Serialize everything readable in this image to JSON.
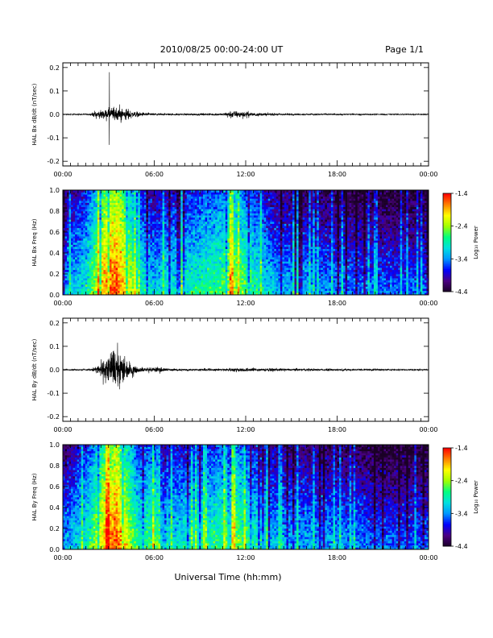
{
  "header": {
    "title": "2010/08/25  00:00-24:00 UT",
    "page": "Page 1/1"
  },
  "xlabel": "Universal Time (hh:mm)",
  "colors": {
    "colormap": [
      "#1a0026",
      "#4b0082",
      "#0000ff",
      "#0096ff",
      "#00e0e0",
      "#00ff80",
      "#a0ff00",
      "#ffff00",
      "#ff8000",
      "#ff0000"
    ],
    "trace": "#000000"
  },
  "chart_data": [
    {
      "type": "line",
      "ylabel": "HAL Bx dB/dt (nT/sec)",
      "x_range": [
        "00:00",
        "24:00"
      ],
      "ylim": [
        -0.22,
        0.22
      ],
      "yticks": [
        "-0.2",
        "-0.1",
        "0.0",
        "0.1",
        "0.2"
      ],
      "xticks": [
        "00:00",
        "06:00",
        "12:00",
        "18:00",
        "00:00"
      ],
      "activity_envelope": [
        {
          "hour": 0.0,
          "amp": 0.003
        },
        {
          "hour": 1.8,
          "amp": 0.004
        },
        {
          "hour": 2.0,
          "amp": 0.015
        },
        {
          "hour": 2.4,
          "amp": 0.02
        },
        {
          "hour": 3.0,
          "amp": 0.03
        },
        {
          "hour": 3.6,
          "amp": 0.045
        },
        {
          "hour": 4.0,
          "amp": 0.035
        },
        {
          "hour": 4.5,
          "amp": 0.02
        },
        {
          "hour": 5.0,
          "amp": 0.012
        },
        {
          "hour": 6.0,
          "amp": 0.006
        },
        {
          "hour": 8.0,
          "amp": 0.005
        },
        {
          "hour": 10.5,
          "amp": 0.006
        },
        {
          "hour": 11.0,
          "amp": 0.02
        },
        {
          "hour": 12.0,
          "amp": 0.015
        },
        {
          "hour": 13.0,
          "amp": 0.008
        },
        {
          "hour": 15.0,
          "amp": 0.005
        },
        {
          "hour": 18.0,
          "amp": 0.004
        },
        {
          "hour": 24.0,
          "amp": 0.003
        }
      ],
      "spike": {
        "hour": 3.05,
        "max": 0.18,
        "min": -0.13
      }
    },
    {
      "type": "heatmap",
      "ylabel": "HAL Bx Freq (Hz)",
      "ylim": [
        0.0,
        1.0
      ],
      "yticks": [
        "0.0",
        "0.2",
        "0.4",
        "0.6",
        "0.8",
        "1.0"
      ],
      "xticks": [
        "00:00",
        "06:00",
        "12:00",
        "18:00",
        "00:00"
      ],
      "colorbar_label": "Log₁₀ Power",
      "colorbar_ticks": [
        "-1.4",
        "-2.4",
        "-3.4",
        "-4.4"
      ],
      "crange": [
        -4.4,
        -1.4
      ],
      "bands": [
        {
          "hour": 0.0,
          "level": -3.7
        },
        {
          "hour": 1.5,
          "level": -3.3
        },
        {
          "hour": 2.0,
          "level": -2.9
        },
        {
          "hour": 2.8,
          "level": -2.1
        },
        {
          "hour": 3.5,
          "level": -1.9
        },
        {
          "hour": 4.2,
          "level": -2.4
        },
        {
          "hour": 5.0,
          "level": -3.2
        },
        {
          "hour": 6.0,
          "level": -3.5
        },
        {
          "hour": 8.0,
          "level": -3.3
        },
        {
          "hour": 10.5,
          "level": -3.0
        },
        {
          "hour": 11.0,
          "level": -2.6
        },
        {
          "hour": 12.0,
          "level": -3.0
        },
        {
          "hour": 14.0,
          "level": -3.6
        },
        {
          "hour": 18.0,
          "level": -3.8
        },
        {
          "hour": 21.0,
          "level": -3.9
        },
        {
          "hour": 24.0,
          "level": -3.9
        }
      ]
    },
    {
      "type": "line",
      "ylabel": "HAL By dB/dt (nT/sec)",
      "x_range": [
        "00:00",
        "24:00"
      ],
      "ylim": [
        -0.22,
        0.22
      ],
      "yticks": [
        "-0.2",
        "-0.1",
        "0.0",
        "0.1",
        "0.2"
      ],
      "xticks": [
        "00:00",
        "06:00",
        "12:00",
        "18:00",
        "00:00"
      ],
      "activity_envelope": [
        {
          "hour": 0.0,
          "amp": 0.003
        },
        {
          "hour": 1.8,
          "amp": 0.005
        },
        {
          "hour": 2.2,
          "amp": 0.02
        },
        {
          "hour": 2.8,
          "amp": 0.06
        },
        {
          "hour": 3.4,
          "amp": 0.13
        },
        {
          "hour": 3.8,
          "amp": 0.09
        },
        {
          "hour": 4.4,
          "amp": 0.04
        },
        {
          "hour": 5.0,
          "amp": 0.012
        },
        {
          "hour": 6.5,
          "amp": 0.015
        },
        {
          "hour": 7.0,
          "amp": 0.006
        },
        {
          "hour": 10.5,
          "amp": 0.007
        },
        {
          "hour": 11.5,
          "amp": 0.012
        },
        {
          "hour": 13.0,
          "amp": 0.008
        },
        {
          "hour": 18.0,
          "amp": 0.006
        },
        {
          "hour": 24.0,
          "amp": 0.004
        }
      ]
    },
    {
      "type": "heatmap",
      "ylabel": "HAL By Freq (Hz)",
      "ylim": [
        0.0,
        1.0
      ],
      "yticks": [
        "0.0",
        "0.2",
        "0.4",
        "0.6",
        "0.8",
        "1.0"
      ],
      "xticks": [
        "00:00",
        "06:00",
        "12:00",
        "18:00",
        "00:00"
      ],
      "colorbar_label": "Log₁₀ Power",
      "colorbar_ticks": [
        "-1.4",
        "-2.4",
        "-3.4",
        "-4.4"
      ],
      "crange": [
        -4.4,
        -1.4
      ],
      "bands": [
        {
          "hour": 0.0,
          "level": -3.7
        },
        {
          "hour": 1.5,
          "level": -3.3
        },
        {
          "hour": 2.0,
          "level": -2.9
        },
        {
          "hour": 2.8,
          "level": -2.2
        },
        {
          "hour": 3.5,
          "level": -1.9
        },
        {
          "hour": 4.2,
          "level": -2.5
        },
        {
          "hour": 5.0,
          "level": -3.2
        },
        {
          "hour": 6.5,
          "level": -2.9
        },
        {
          "hour": 7.0,
          "level": -3.4
        },
        {
          "hour": 10.5,
          "level": -3.1
        },
        {
          "hour": 11.0,
          "level": -2.7
        },
        {
          "hour": 12.0,
          "level": -3.1
        },
        {
          "hour": 14.0,
          "level": -3.6
        },
        {
          "hour": 18.0,
          "level": -3.7
        },
        {
          "hour": 21.0,
          "level": -3.9
        },
        {
          "hour": 24.0,
          "level": -3.9
        }
      ]
    }
  ]
}
